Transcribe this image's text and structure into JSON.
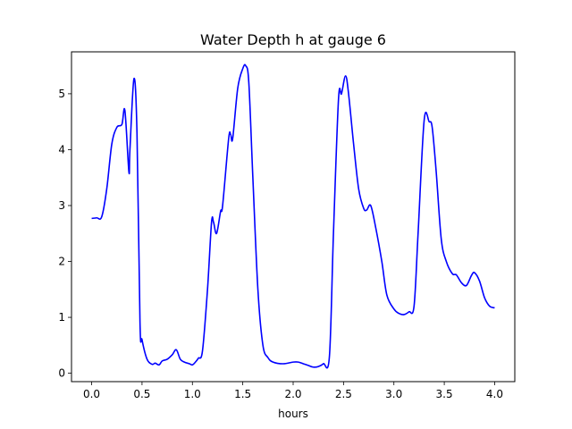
{
  "chart_data": {
    "type": "line",
    "title": "Water Depth h at gauge 6",
    "xlabel": "hours",
    "ylabel": "",
    "xlim": [
      -0.2,
      4.2
    ],
    "ylim": [
      -0.15,
      5.75
    ],
    "xticks": [
      "0.0",
      "0.5",
      "1.0",
      "1.5",
      "2.0",
      "2.5",
      "3.0",
      "3.5",
      "4.0"
    ],
    "xtick_values": [
      0,
      0.5,
      1.0,
      1.5,
      2.0,
      2.5,
      3.0,
      3.5,
      4.0
    ],
    "yticks": [
      "0",
      "1",
      "2",
      "3",
      "4",
      "5"
    ],
    "ytick_values": [
      0,
      1,
      2,
      3,
      4,
      5
    ],
    "grid": false,
    "series": [
      {
        "color": "#0000ff",
        "x": [
          0.0,
          0.05,
          0.1,
          0.15,
          0.2,
          0.25,
          0.3,
          0.33,
          0.37,
          0.38,
          0.42,
          0.45,
          0.48,
          0.5,
          0.55,
          0.6,
          0.63,
          0.67,
          0.7,
          0.75,
          0.8,
          0.84,
          0.88,
          0.92,
          0.97,
          1.0,
          1.03,
          1.06,
          1.1,
          1.15,
          1.19,
          1.21,
          1.24,
          1.28,
          1.3,
          1.36,
          1.38,
          1.4,
          1.45,
          1.5,
          1.53,
          1.56,
          1.6,
          1.65,
          1.7,
          1.75,
          1.8,
          1.9,
          2.0,
          2.05,
          2.1,
          2.15,
          2.2,
          2.25,
          2.3,
          2.36,
          2.4,
          2.45,
          2.48,
          2.52,
          2.55,
          2.6,
          2.65,
          2.7,
          2.73,
          2.77,
          2.82,
          2.88,
          2.93,
          3.0,
          3.05,
          3.1,
          3.15,
          3.2,
          3.24,
          3.3,
          3.35,
          3.38,
          3.42,
          3.47,
          3.52,
          3.58,
          3.62,
          3.67,
          3.72,
          3.77,
          3.8,
          3.85,
          3.9,
          3.95,
          4.0
        ],
        "y": [
          2.77,
          2.78,
          2.8,
          3.3,
          4.1,
          4.4,
          4.45,
          4.7,
          3.6,
          4.0,
          5.27,
          4.3,
          0.9,
          0.6,
          0.25,
          0.16,
          0.18,
          0.15,
          0.22,
          0.25,
          0.33,
          0.42,
          0.25,
          0.2,
          0.17,
          0.15,
          0.2,
          0.27,
          0.4,
          1.5,
          2.7,
          2.7,
          2.5,
          2.9,
          3.0,
          4.2,
          4.27,
          4.2,
          5.1,
          5.45,
          5.5,
          5.2,
          3.5,
          1.5,
          0.5,
          0.28,
          0.2,
          0.17,
          0.2,
          0.2,
          0.17,
          0.14,
          0.11,
          0.12,
          0.17,
          0.3,
          2.5,
          4.9,
          5.0,
          5.32,
          5.0,
          4.1,
          3.3,
          2.95,
          2.92,
          3.0,
          2.6,
          2.0,
          1.4,
          1.15,
          1.07,
          1.05,
          1.1,
          1.2,
          2.5,
          4.52,
          4.5,
          4.4,
          3.6,
          2.4,
          2.0,
          1.78,
          1.76,
          1.62,
          1.57,
          1.75,
          1.8,
          1.65,
          1.35,
          1.2,
          1.17
        ]
      }
    ]
  }
}
